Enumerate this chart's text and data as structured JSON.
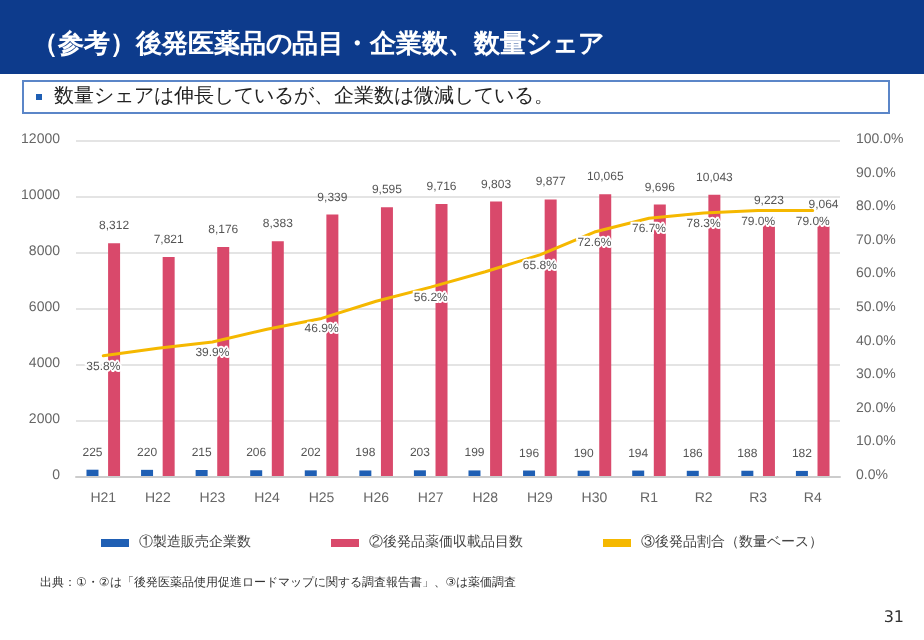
{
  "chart_data": {
    "type": "bar",
    "title": "（参考）後発医薬品の品目・企業数、数量シェア",
    "subtitle": "数量シェアは伸長しているが、企業数は微減している。",
    "categories": [
      "H21",
      "H22",
      "H23",
      "H24",
      "H25",
      "H26",
      "H27",
      "H28",
      "H29",
      "H30",
      "R1",
      "R2",
      "R3",
      "R4"
    ],
    "series": [
      {
        "name": "①製造販売企業数",
        "color": "#1f5fb4",
        "values": [
          225,
          220,
          215,
          206,
          202,
          198,
          203,
          199,
          196,
          190,
          194,
          186,
          188,
          182
        ],
        "value_labels": [
          "225",
          "220",
          "215",
          "206",
          "202",
          "198",
          "203",
          "199",
          "196",
          "190",
          "194",
          "186",
          "188",
          "182"
        ]
      },
      {
        "name": "②後発品薬価収載品目数",
        "color": "#d9496b",
        "values": [
          8312,
          7821,
          8176,
          8383,
          9339,
          9595,
          9716,
          9803,
          9877,
          10065,
          9696,
          10043,
          9223,
          9064
        ],
        "value_labels": [
          "8,312",
          "7,821",
          "8,176",
          "8,383",
          "9,339",
          "9,595",
          "9,716",
          "9,803",
          "9,877",
          "10,065",
          "9,696",
          "10,043",
          "9,223",
          "9,064"
        ]
      },
      {
        "name": "③後発品割合（数量ベース）",
        "type": "line",
        "axis": "y2",
        "color": "#f5b800",
        "values": [
          35.8,
          38,
          39.9,
          43.7,
          46.9,
          52,
          56.2,
          60.8,
          65.8,
          72.6,
          76.7,
          78.3,
          79.0,
          79.0
        ],
        "value_labels": [
          "35.8%",
          null,
          "39.9%",
          null,
          "46.9%",
          null,
          "56.2%",
          null,
          "65.8%",
          "72.6%",
          "76.7%",
          "78.3%",
          "79.0%",
          "79.0%"
        ]
      }
    ],
    "ylim": [
      0,
      12000
    ],
    "yticks": [
      0,
      2000,
      4000,
      6000,
      8000,
      10000,
      12000
    ],
    "y2lim": [
      0,
      100
    ],
    "y2ticks": [
      {
        "value": 0,
        "label": "0.0%"
      },
      {
        "value": 10,
        "label": "10.0%"
      },
      {
        "value": 20,
        "label": "20.0%"
      },
      {
        "value": 30,
        "label": "30.0%"
      },
      {
        "value": 40,
        "label": "40.0%"
      },
      {
        "value": 50,
        "label": "50.0%"
      },
      {
        "value": 60,
        "label": "60.0%"
      },
      {
        "value": 70,
        "label": "70.0%"
      },
      {
        "value": 80,
        "label": "80.0%"
      },
      {
        "value": 90,
        "label": "90.0%"
      },
      {
        "value": 100,
        "label": "100.0%"
      }
    ],
    "grid": "y",
    "legend": "bottom",
    "marker": "none",
    "annotations": [
      "出典：①・②は「後発医薬品使用促進ロードマップに関する調査報告書」、③は薬価調査",
      "31"
    ]
  }
}
